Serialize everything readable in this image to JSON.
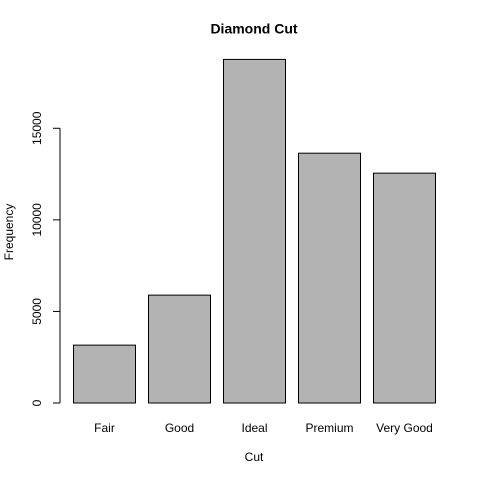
{
  "chart_data": {
    "type": "bar",
    "title": "Diamond Cut",
    "x_label": "Cut",
    "y_label": "Frequency",
    "categories": [
      "Fair",
      "Good",
      "Ideal",
      "Premium",
      "Very Good"
    ],
    "values": [
      3160,
      5890,
      18760,
      13640,
      12550
    ],
    "color": "#b3b3b3",
    "ylim": [
      0,
      20000
    ],
    "yticks": [
      0,
      5000,
      10000,
      15000
    ],
    "grid": false
  }
}
